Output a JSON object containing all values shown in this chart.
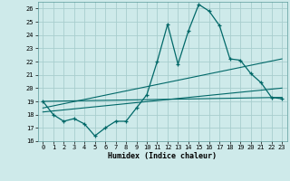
{
  "title": "",
  "xlabel": "Humidex (Indice chaleur)",
  "background_color": "#ceeaea",
  "grid_color": "#a8cece",
  "line_color": "#006868",
  "xlim": [
    -0.5,
    23.5
  ],
  "ylim": [
    16,
    26.5
  ],
  "xtick_labels": [
    "0",
    "1",
    "2",
    "3",
    "4",
    "5",
    "6",
    "7",
    "8",
    "9",
    "10",
    "11",
    "12",
    "13",
    "14",
    "15",
    "16",
    "17",
    "18",
    "19",
    "20",
    "21",
    "22",
    "23"
  ],
  "ytick_values": [
    16,
    17,
    18,
    19,
    20,
    21,
    22,
    23,
    24,
    25,
    26
  ],
  "line1_x": [
    0,
    1,
    2,
    3,
    4,
    5,
    6,
    7,
    8,
    9,
    10,
    11,
    12,
    13,
    14,
    15,
    16,
    17,
    18,
    19,
    20,
    21,
    22,
    23
  ],
  "line1_y": [
    19.0,
    18.0,
    17.5,
    17.7,
    17.3,
    16.4,
    17.0,
    17.5,
    17.5,
    18.5,
    19.5,
    22.0,
    24.8,
    21.8,
    24.3,
    26.3,
    25.8,
    24.7,
    22.2,
    22.1,
    21.1,
    20.4,
    19.3,
    19.2
  ],
  "line2_x": [
    0,
    23
  ],
  "line2_y": [
    18.5,
    22.2
  ],
  "line3_x": [
    0,
    23
  ],
  "line3_y": [
    18.2,
    20.0
  ],
  "line4_x": [
    0,
    23
  ],
  "line4_y": [
    19.0,
    19.3
  ]
}
